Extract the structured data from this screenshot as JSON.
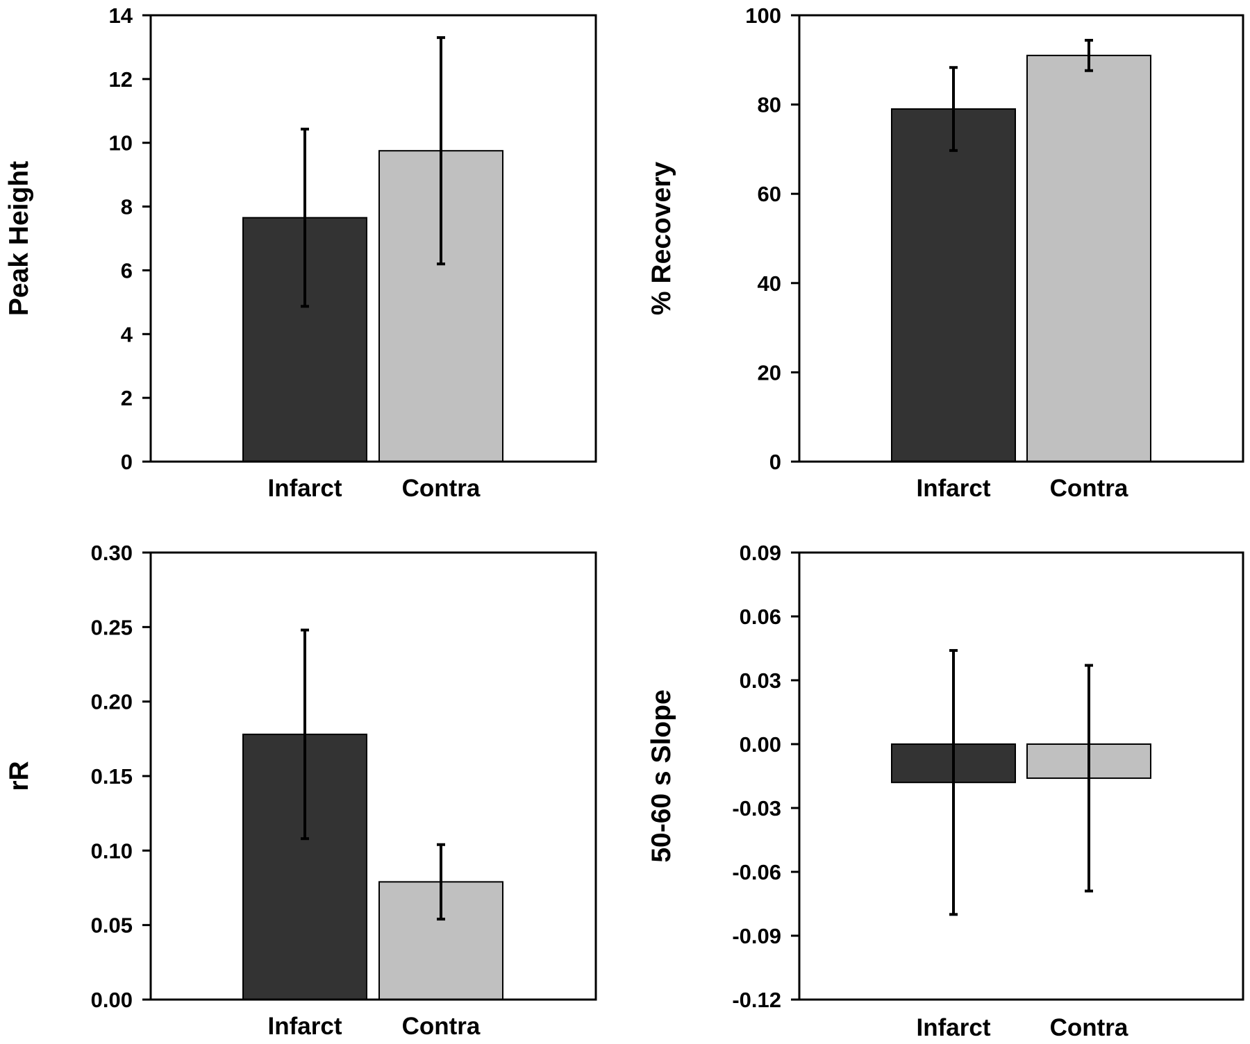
{
  "colors": {
    "infarct": "#333333",
    "contra": "#c0c0c0",
    "axis": "#000000",
    "errorbar": "#000000"
  },
  "chart_data": [
    {
      "type": "bar",
      "panel": "top-left",
      "categories": [
        "Infarct",
        "Contra"
      ],
      "values": [
        7.65,
        9.75
      ],
      "errors": [
        2.78,
        3.55
      ],
      "xlabel": "",
      "ylabel": "Peak Height",
      "ylim": [
        0,
        14
      ],
      "yticks": [
        "0",
        "2",
        "4",
        "6",
        "8",
        "10",
        "12",
        "14"
      ],
      "grid": false,
      "legend": "none"
    },
    {
      "type": "bar",
      "panel": "top-right",
      "categories": [
        "Infarct",
        "Contra"
      ],
      "values": [
        79,
        91
      ],
      "errors": [
        9.3,
        3.4
      ],
      "xlabel": "",
      "ylabel": "% Recovery",
      "ylim": [
        0,
        100
      ],
      "yticks": [
        "0",
        "20",
        "40",
        "60",
        "80",
        "100"
      ],
      "grid": false,
      "legend": "none"
    },
    {
      "type": "bar",
      "panel": "bottom-left",
      "categories": [
        "Infarct",
        "Contra"
      ],
      "values": [
        0.178,
        0.079
      ],
      "errors": [
        0.07,
        0.025
      ],
      "xlabel": "",
      "ylabel": "rR",
      "ylim": [
        0,
        0.3
      ],
      "yticks": [
        "0.00",
        "0.05",
        "0.10",
        "0.15",
        "0.20",
        "0.25",
        "0.30"
      ],
      "grid": false,
      "legend": "none"
    },
    {
      "type": "bar",
      "panel": "bottom-right",
      "categories": [
        "Infarct",
        "Contra"
      ],
      "values": [
        -0.018,
        -0.016
      ],
      "errors": [
        0.062,
        0.053
      ],
      "xlabel": "",
      "ylabel": "50-60 s Slope",
      "ylim": [
        -0.12,
        0.09
      ],
      "yticks": [
        "-0.12",
        "-0.09",
        "-0.06",
        "-0.03",
        "0.00",
        "0.03",
        "0.06",
        "0.09"
      ],
      "grid": false,
      "legend": "none"
    }
  ]
}
